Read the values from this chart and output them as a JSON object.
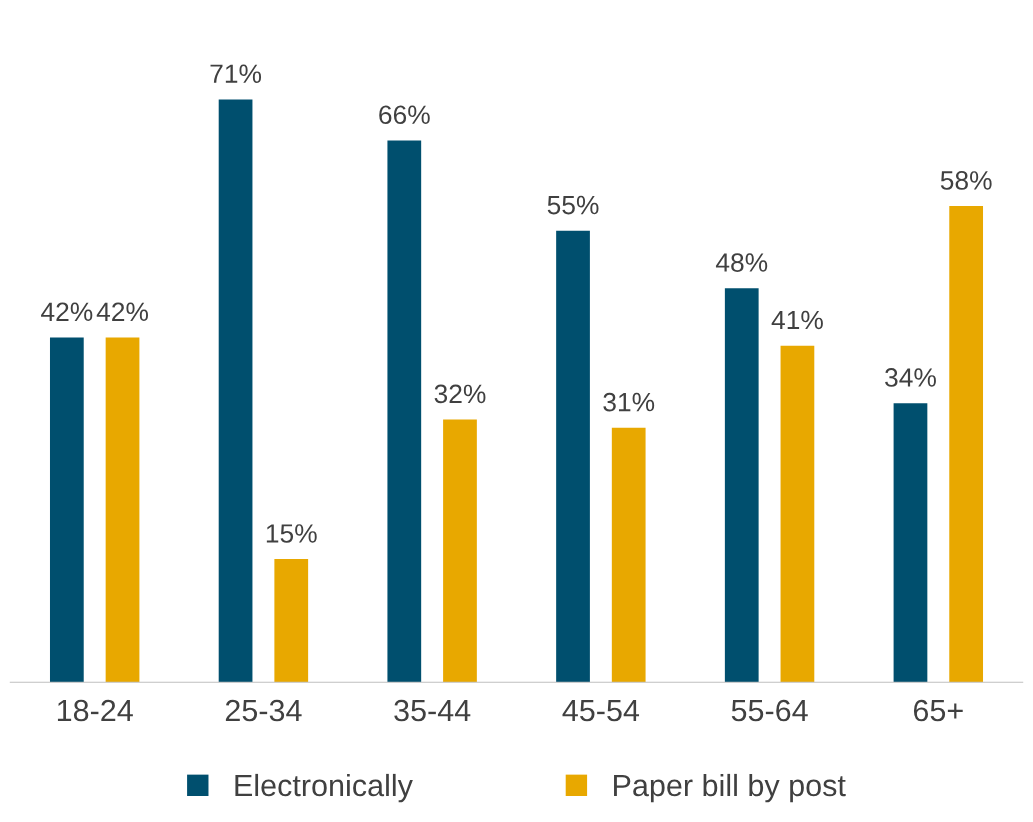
{
  "chart_data": {
    "type": "bar",
    "categories": [
      "18-24",
      "25-34",
      "35-44",
      "45-54",
      "55-64",
      "65+"
    ],
    "series": [
      {
        "name": "Electronically",
        "color": "#004f6e",
        "values": [
          42,
          71,
          66,
          55,
          48,
          34
        ],
        "value_labels": [
          "42%",
          "71%",
          "66%",
          "55%",
          "48%",
          "34%"
        ]
      },
      {
        "name": "Paper bill by post",
        "color": "#e8a800",
        "values": [
          42,
          15,
          32,
          31,
          41,
          58
        ],
        "value_labels": [
          "42%",
          "15%",
          "32%",
          "31%",
          "41%",
          "58%"
        ]
      }
    ],
    "legend": "bottom",
    "grid": false
  }
}
